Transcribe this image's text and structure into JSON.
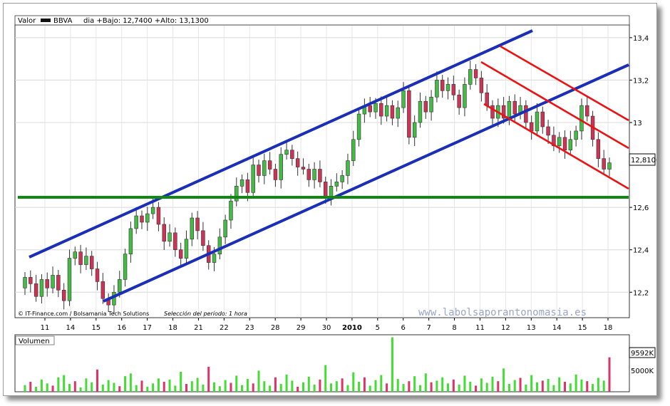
{
  "header": {
    "valor_label": "Valor",
    "ticker": "BBVA",
    "info": "dia +Bajo: 12,7400 +Alto: 13,1300"
  },
  "footer": {
    "credit": "© IT-Finance.com / Bolsamania Tech Solutions",
    "period": "Selección del período: 1 hora"
  },
  "watermark": "www.labolsaporantonomasia.es",
  "volume_panel": {
    "label": "Volumen",
    "last_value_label": "9592K",
    "tick_label": "5000K"
  },
  "price_panel": {
    "last_price_label": "12,8100"
  },
  "chart_data": {
    "type": "candlestick",
    "interval": "1 hora",
    "y_ticks": [
      "13,4",
      "13,2",
      "13",
      "12,6",
      "12,4",
      "12,2"
    ],
    "y_tick_values": [
      13.4,
      13.2,
      13.0,
      12.6,
      12.4,
      12.2
    ],
    "ylim": [
      12.08,
      13.46
    ],
    "x_ticks": [
      "11",
      "14",
      "15",
      "16",
      "17",
      "18",
      "21",
      "22",
      "23",
      "28",
      "29",
      "30",
      "2010",
      "5",
      "6",
      "7",
      "8",
      "11",
      "12",
      "13",
      "14",
      "15",
      "18"
    ],
    "last_price": 12.81,
    "candles": [
      [
        12.22,
        12.27
      ],
      [
        12.27,
        12.24
      ],
      [
        12.24,
        12.18
      ],
      [
        12.18,
        12.26
      ],
      [
        12.26,
        12.22
      ],
      [
        12.22,
        12.28
      ],
      [
        12.28,
        12.21
      ],
      [
        12.21,
        12.16
      ],
      [
        12.16,
        12.36
      ],
      [
        12.36,
        12.39
      ],
      [
        12.39,
        12.33
      ],
      [
        12.33,
        12.37
      ],
      [
        12.37,
        12.31
      ],
      [
        12.31,
        12.25
      ],
      [
        12.25,
        12.17
      ],
      [
        12.17,
        12.14
      ],
      [
        12.14,
        12.2
      ],
      [
        12.2,
        12.26
      ],
      [
        12.26,
        12.38
      ],
      [
        12.38,
        12.5
      ],
      [
        12.5,
        12.56
      ],
      [
        12.56,
        12.53
      ],
      [
        12.53,
        12.57
      ],
      [
        12.57,
        12.6
      ],
      [
        12.6,
        12.52
      ],
      [
        12.52,
        12.44
      ],
      [
        12.44,
        12.48
      ],
      [
        12.48,
        12.4
      ],
      [
        12.4,
        12.36
      ],
      [
        12.36,
        12.45
      ],
      [
        12.45,
        12.55
      ],
      [
        12.55,
        12.49
      ],
      [
        12.49,
        12.42
      ],
      [
        12.42,
        12.34
      ],
      [
        12.34,
        12.38
      ],
      [
        12.38,
        12.46
      ],
      [
        12.46,
        12.54
      ],
      [
        12.54,
        12.63
      ],
      [
        12.63,
        12.7
      ],
      [
        12.7,
        12.73
      ],
      [
        12.73,
        12.67
      ],
      [
        12.67,
        12.8
      ],
      [
        12.8,
        12.75
      ],
      [
        12.75,
        12.82
      ],
      [
        12.82,
        12.78
      ],
      [
        12.78,
        12.73
      ],
      [
        12.73,
        12.85
      ],
      [
        12.85,
        12.87
      ],
      [
        12.87,
        12.83
      ],
      [
        12.83,
        12.79
      ],
      [
        12.79,
        12.78
      ],
      [
        12.78,
        12.73
      ],
      [
        12.73,
        12.78
      ],
      [
        12.78,
        12.72
      ],
      [
        12.72,
        12.65
      ],
      [
        12.65,
        12.7
      ],
      [
        12.7,
        12.72
      ],
      [
        12.72,
        12.75
      ],
      [
        12.75,
        12.82
      ],
      [
        12.82,
        12.92
      ],
      [
        12.92,
        13.04
      ],
      [
        13.04,
        13.08
      ],
      [
        13.08,
        13.05
      ],
      [
        13.05,
        13.09
      ],
      [
        13.09,
        13.03
      ],
      [
        13.03,
        13.08
      ],
      [
        13.08,
        13.02
      ],
      [
        13.02,
        13.07
      ],
      [
        13.07,
        13.15
      ],
      [
        13.15,
        12.93
      ],
      [
        12.93,
        13.0
      ],
      [
        13.0,
        13.1
      ],
      [
        13.1,
        13.05
      ],
      [
        13.05,
        13.12
      ],
      [
        13.12,
        13.2
      ],
      [
        13.2,
        13.15
      ],
      [
        13.15,
        13.18
      ],
      [
        13.18,
        13.13
      ],
      [
        13.13,
        13.07
      ],
      [
        13.07,
        13.18
      ],
      [
        13.18,
        13.25
      ],
      [
        13.25,
        13.21
      ],
      [
        13.21,
        13.14
      ],
      [
        13.14,
        13.08
      ],
      [
        13.08,
        13.02
      ],
      [
        13.02,
        13.08
      ],
      [
        13.08,
        13.02
      ],
      [
        13.02,
        13.1
      ],
      [
        13.1,
        13.04
      ],
      [
        13.04,
        13.08
      ],
      [
        13.08,
        13.0
      ],
      [
        13.0,
        12.96
      ],
      [
        12.96,
        13.05
      ],
      [
        13.05,
        12.98
      ],
      [
        12.98,
        12.94
      ],
      [
        12.94,
        12.89
      ],
      [
        12.89,
        12.93
      ],
      [
        12.93,
        12.87
      ],
      [
        12.87,
        12.92
      ],
      [
        12.92,
        12.96
      ],
      [
        12.96,
        13.08
      ],
      [
        13.08,
        13.03
      ],
      [
        13.03,
        12.92
      ],
      [
        12.92,
        12.83
      ],
      [
        12.83,
        12.78
      ],
      [
        12.78,
        12.81
      ]
    ],
    "volume": [
      12,
      18,
      9,
      22,
      15,
      11,
      26,
      30,
      14,
      19,
      8,
      24,
      17,
      40,
      13,
      21,
      16,
      10,
      28,
      33,
      12,
      20,
      9,
      15,
      24,
      18,
      22,
      11,
      36,
      14,
      19,
      25,
      13,
      45,
      17,
      10,
      21,
      16,
      29,
      12,
      23,
      15,
      38,
      19,
      11,
      26,
      14,
      31,
      20,
      9,
      17,
      27,
      13,
      22,
      48,
      15,
      19,
      24,
      12,
      35,
      18,
      26,
      11,
      21,
      30,
      15,
      98,
      23,
      14,
      19,
      28,
      12,
      33,
      17,
      20,
      26,
      15,
      22,
      13,
      29,
      18,
      11,
      24,
      16,
      27,
      19,
      42,
      14,
      21,
      25,
      13,
      30,
      17,
      20,
      23,
      12,
      26,
      18,
      15,
      31,
      22,
      19,
      14,
      25,
      20,
      62
    ],
    "volume_up_color": "#44dd33",
    "volume_down_color": "#dd3366"
  },
  "colors": {
    "up_candle": "#44bb44",
    "down_candle": "#cc3355",
    "uptrend_channel": "#1a2eb8",
    "downtrend_channel": "#ee1111",
    "support_line": "#118811"
  }
}
